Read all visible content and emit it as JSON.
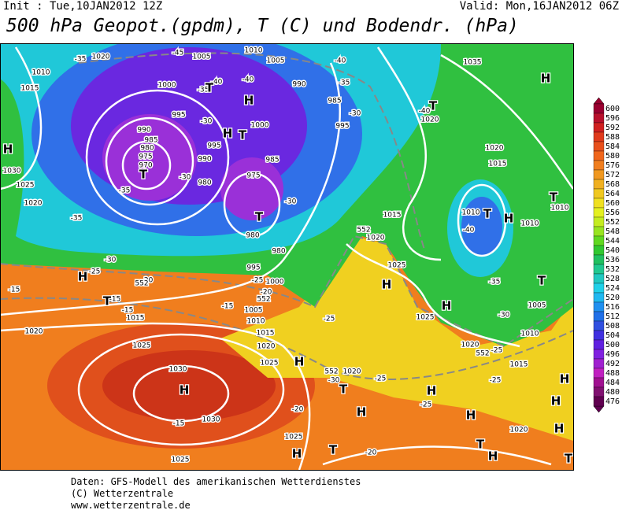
{
  "header": {
    "init": "Init : Tue,10JAN2012 12Z",
    "valid": "Valid: Mon,16JAN2012 06Z",
    "title": "500 hPa Geopot.(gpdm), T (C) und Bodendr. (hPa)"
  },
  "colorbar": {
    "labels": [
      600,
      596,
      592,
      588,
      584,
      580,
      576,
      572,
      568,
      564,
      560,
      556,
      552,
      548,
      544,
      540,
      536,
      532,
      528,
      524,
      520,
      516,
      512,
      508,
      504,
      500,
      496,
      492,
      488,
      484,
      480,
      476
    ],
    "colors": [
      "#9a0030",
      "#b8102c",
      "#d02020",
      "#e03a1c",
      "#e8501c",
      "#f0661c",
      "#f07e1e",
      "#f09820",
      "#f0b020",
      "#f0c820",
      "#f0e020",
      "#e4f020",
      "#c4ec20",
      "#98e420",
      "#60d820",
      "#30c830",
      "#20c060",
      "#20c890",
      "#20c8c0",
      "#20d0e8",
      "#20b8f0",
      "#2090f0",
      "#2070e8",
      "#3050e0",
      "#4030e0",
      "#6020e0",
      "#8020e0",
      "#a020d0",
      "#c020c0",
      "#a01090",
      "#801070",
      "#600050"
    ]
  },
  "map": {
    "labels": [
      "1020",
      "-35",
      "1010",
      "1015",
      "-45",
      "1005",
      "1010",
      "1005",
      "1000",
      "-40",
      "-35",
      "-40",
      "990",
      "-35",
      "985",
      "995",
      "-30",
      "990",
      "985",
      "980",
      "975",
      "970",
      "1000",
      "995",
      "990",
      "985",
      "980",
      "975",
      "-30",
      "-35",
      "980",
      "-30",
      "-35",
      "1030",
      "1025",
      "1020",
      "995",
      "-30",
      "-40",
      "1020",
      "-40",
      "1035",
      "1020",
      "1015",
      "1015",
      "1020",
      "1010",
      "-40",
      "1010",
      "1010",
      "-30",
      "-25",
      "-20",
      "-15",
      "-15",
      "-15",
      "1015",
      "-15",
      "1020",
      "1025",
      "1030",
      "-15",
      "1030",
      "1025",
      "1025",
      "1020",
      "1015",
      "1010",
      "1005",
      "1000",
      "995",
      "980",
      "-20",
      "-25",
      "1025",
      "1025",
      "1025",
      "1020",
      "1015",
      "1010",
      "1005",
      "-35",
      "-30",
      "-25",
      "-25",
      "-25",
      "-25",
      "-30",
      "1020",
      "-20",
      "1020",
      "-25",
      "552",
      "552",
      "552",
      "552",
      "552",
      "-20"
    ],
    "highs": [
      "H",
      "H",
      "H",
      "H",
      "H",
      "H",
      "H",
      "H",
      "H",
      "H",
      "H",
      "H",
      "H",
      "H",
      "H",
      "H",
      "H",
      "H"
    ],
    "lows": [
      "T",
      "T",
      "T",
      "T",
      "T",
      "T",
      "T",
      "T",
      "T",
      "T",
      "T",
      "T",
      "T"
    ]
  },
  "footer": [
    "Daten: GFS-Modell des amerikanischen Wetterdienstes",
    "(C) Wetterzentrale",
    "www.wetterzentrale.de"
  ]
}
